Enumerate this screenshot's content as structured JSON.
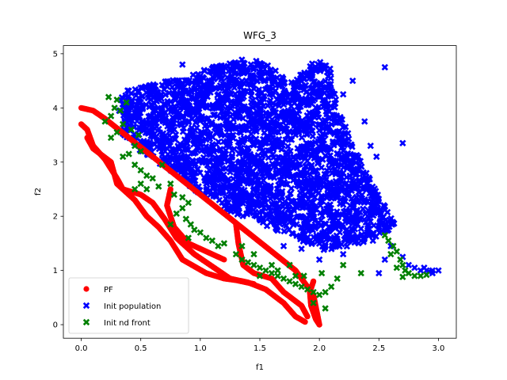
{
  "chart_data": {
    "type": "scatter",
    "title": "WFG_3",
    "xlabel": "f1",
    "ylabel": "f2",
    "xlim": [
      -0.15,
      3.15
    ],
    "ylim": [
      -0.25,
      5.15
    ],
    "xticks": [
      "0.0",
      "0.5",
      "1.0",
      "1.5",
      "2.0",
      "2.5",
      "3.0"
    ],
    "xtick_values": [
      0,
      0.5,
      1.0,
      1.5,
      2.0,
      2.5,
      3.0
    ],
    "yticks": [
      "0",
      "1",
      "2",
      "3",
      "4",
      "5"
    ],
    "ytick_values": [
      0,
      1,
      2,
      3,
      4,
      5
    ],
    "grid": false,
    "legend_position": "lower-left",
    "series": [
      {
        "name": "PF",
        "marker": "circle",
        "color": "#ff0000",
        "curves": [
          [
            [
              0.0,
              4.0
            ],
            [
              0.1,
              3.95
            ],
            [
              0.2,
              3.8
            ],
            [
              0.4,
              3.45
            ],
            [
              0.6,
              3.1
            ],
            [
              0.8,
              2.75
            ],
            [
              1.0,
              2.4
            ],
            [
              1.2,
              2.05
            ],
            [
              1.4,
              1.7
            ],
            [
              1.6,
              1.35
            ],
            [
              1.8,
              1.0
            ],
            [
              1.95,
              0.55
            ],
            [
              2.0,
              0.0
            ]
          ],
          [
            [
              0.0,
              3.7
            ],
            [
              0.05,
              3.6
            ],
            [
              0.1,
              3.3
            ],
            [
              0.2,
              3.05
            ],
            [
              0.3,
              2.7
            ],
            [
              0.35,
              2.5
            ],
            [
              0.5,
              2.4
            ],
            [
              0.6,
              2.25
            ],
            [
              0.7,
              1.95
            ],
            [
              0.8,
              1.6
            ],
            [
              0.95,
              1.3
            ],
            [
              1.15,
              1.0
            ],
            [
              1.25,
              0.85
            ],
            [
              1.4,
              0.78
            ],
            [
              1.55,
              0.65
            ],
            [
              1.7,
              0.4
            ],
            [
              1.8,
              0.15
            ],
            [
              1.88,
              0.05
            ]
          ],
          [
            [
              0.05,
              3.45
            ],
            [
              0.1,
              3.25
            ],
            [
              0.25,
              3.0
            ],
            [
              0.3,
              2.6
            ],
            [
              0.45,
              2.3
            ],
            [
              0.55,
              2.0
            ],
            [
              0.65,
              1.8
            ],
            [
              0.75,
              1.55
            ],
            [
              0.85,
              1.2
            ],
            [
              1.05,
              0.95
            ],
            [
              1.2,
              0.85
            ],
            [
              1.3,
              0.82
            ],
            [
              1.45,
              0.75
            ]
          ],
          [
            [
              0.75,
              2.5
            ],
            [
              0.72,
              2.2
            ],
            [
              0.78,
              1.8
            ],
            [
              0.9,
              1.5
            ],
            [
              1.1,
              1.3
            ],
            [
              1.2,
              1.2
            ]
          ],
          [
            [
              1.3,
              1.85
            ],
            [
              1.32,
              1.5
            ],
            [
              1.36,
              1.1
            ],
            [
              1.45,
              0.95
            ],
            [
              1.6,
              0.85
            ],
            [
              1.7,
              0.6
            ],
            [
              1.85,
              0.35
            ],
            [
              1.9,
              0.15
            ]
          ],
          [
            [
              1.95,
              0.8
            ],
            [
              1.92,
              0.6
            ],
            [
              1.93,
              0.35
            ],
            [
              1.97,
              0.1
            ],
            [
              2.0,
              0.0
            ]
          ]
        ]
      },
      {
        "name": "Init population",
        "marker": "x-filled",
        "color": "#0000ff",
        "bulk_regions": [
          [
            [
              0.35,
              4.3
            ],
            [
              0.9,
              4.6
            ],
            [
              1.3,
              4.9
            ],
            [
              1.55,
              4.85
            ],
            [
              1.75,
              4.45
            ],
            [
              1.95,
              4.9
            ],
            [
              2.1,
              4.75
            ],
            [
              2.15,
              4.0
            ],
            [
              2.35,
              3.0
            ],
            [
              2.55,
              2.2
            ],
            [
              2.65,
              1.8
            ],
            [
              2.35,
              1.5
            ],
            [
              2.05,
              1.35
            ],
            [
              1.7,
              1.7
            ],
            [
              1.4,
              1.9
            ],
            [
              1.2,
              2.15
            ],
            [
              1.0,
              2.4
            ],
            [
              0.8,
              2.75
            ],
            [
              0.55,
              3.1
            ],
            [
              0.35,
              3.5
            ],
            [
              0.3,
              3.9
            ]
          ]
        ],
        "outliers": [
          [
            0.85,
            4.8
          ],
          [
            1.5,
            4.65
          ],
          [
            2.2,
            4.25
          ],
          [
            2.28,
            4.5
          ],
          [
            2.55,
            4.75
          ],
          [
            2.38,
            3.75
          ],
          [
            2.43,
            3.3
          ],
          [
            2.48,
            3.1
          ],
          [
            2.22,
            3.65
          ],
          [
            2.35,
            2.6
          ],
          [
            2.45,
            2.2
          ],
          [
            2.58,
            1.75
          ],
          [
            2.7,
            3.35
          ],
          [
            2.3,
            1.85
          ],
          [
            2.45,
            1.55
          ],
          [
            2.2,
            1.3
          ],
          [
            2.55,
            1.2
          ],
          [
            2.6,
            1.45
          ],
          [
            2.7,
            1.25
          ],
          [
            2.75,
            1.1
          ],
          [
            2.8,
            1.05
          ],
          [
            2.85,
            1.0
          ],
          [
            2.9,
            1.0
          ],
          [
            2.95,
            1.0
          ],
          [
            3.0,
            1.0
          ],
          [
            2.95,
            0.95
          ],
          [
            2.88,
            1.05
          ],
          [
            2.92,
            0.98
          ],
          [
            2.5,
            0.95
          ],
          [
            1.7,
            1.45
          ],
          [
            1.85,
            1.4
          ],
          [
            2.05,
            1.45
          ],
          [
            2.0,
            1.2
          ],
          [
            0.5,
            4.1
          ],
          [
            0.6,
            4.4
          ],
          [
            0.45,
            3.9
          ],
          [
            1.95,
            3.2
          ],
          [
            2.05,
            3.5
          ]
        ]
      },
      {
        "name": "Init nd front",
        "marker": "x-filled",
        "color": "#008000",
        "points": [
          [
            0.23,
            4.2
          ],
          [
            0.3,
            4.15
          ],
          [
            0.38,
            4.1
          ],
          [
            0.28,
            4.0
          ],
          [
            0.33,
            3.95
          ],
          [
            0.25,
            3.85
          ],
          [
            0.2,
            3.75
          ],
          [
            0.35,
            3.7
          ],
          [
            0.42,
            3.6
          ],
          [
            0.3,
            3.55
          ],
          [
            0.25,
            3.45
          ],
          [
            0.48,
            3.5
          ],
          [
            0.45,
            3.3
          ],
          [
            0.5,
            3.2
          ],
          [
            0.4,
            3.15
          ],
          [
            0.35,
            3.1
          ],
          [
            0.45,
            2.95
          ],
          [
            0.5,
            2.85
          ],
          [
            0.55,
            2.75
          ],
          [
            0.6,
            2.7
          ],
          [
            0.65,
            2.55
          ],
          [
            0.45,
            2.5
          ],
          [
            0.55,
            2.5
          ],
          [
            0.5,
            2.6
          ],
          [
            0.68,
            2.95
          ],
          [
            0.75,
            2.6
          ],
          [
            0.78,
            2.4
          ],
          [
            0.85,
            2.35
          ],
          [
            0.9,
            2.25
          ],
          [
            0.85,
            2.15
          ],
          [
            0.8,
            2.05
          ],
          [
            0.88,
            1.95
          ],
          [
            0.92,
            1.85
          ],
          [
            0.95,
            1.75
          ],
          [
            0.75,
            1.85
          ],
          [
            0.9,
            1.6
          ],
          [
            1.0,
            1.7
          ],
          [
            1.05,
            1.6
          ],
          [
            1.1,
            1.55
          ],
          [
            1.15,
            1.45
          ],
          [
            1.2,
            1.5
          ],
          [
            1.3,
            1.3
          ],
          [
            1.35,
            1.2
          ],
          [
            1.4,
            1.15
          ],
          [
            1.45,
            1.1
          ],
          [
            1.5,
            1.05
          ],
          [
            1.55,
            1.0
          ],
          [
            1.6,
            0.95
          ],
          [
            1.65,
            0.9
          ],
          [
            1.7,
            0.85
          ],
          [
            1.75,
            0.8
          ],
          [
            1.8,
            0.75
          ],
          [
            1.85,
            0.7
          ],
          [
            1.9,
            0.65
          ],
          [
            1.95,
            0.6
          ],
          [
            2.0,
            0.55
          ],
          [
            2.05,
            0.6
          ],
          [
            2.1,
            0.7
          ],
          [
            1.8,
            0.9
          ],
          [
            1.5,
            0.9
          ],
          [
            1.65,
            1.0
          ],
          [
            1.35,
            1.45
          ],
          [
            1.45,
            1.3
          ],
          [
            2.02,
            0.95
          ],
          [
            2.15,
            0.85
          ],
          [
            2.2,
            1.1
          ],
          [
            2.35,
            0.95
          ],
          [
            1.87,
            0.9
          ],
          [
            1.95,
            0.4
          ],
          [
            2.05,
            0.3
          ],
          [
            1.75,
            1.1
          ],
          [
            1.6,
            1.1
          ],
          [
            2.55,
            1.65
          ],
          [
            2.58,
            1.55
          ],
          [
            2.62,
            1.45
          ],
          [
            2.65,
            1.35
          ],
          [
            2.68,
            1.2
          ],
          [
            2.7,
            1.1
          ],
          [
            2.72,
            1.0
          ],
          [
            2.75,
            0.95
          ],
          [
            2.8,
            0.9
          ],
          [
            2.85,
            0.9
          ],
          [
            2.7,
            0.88
          ],
          [
            2.9,
            0.92
          ],
          [
            2.6,
            1.3
          ],
          [
            2.65,
            1.05
          ]
        ]
      }
    ]
  }
}
